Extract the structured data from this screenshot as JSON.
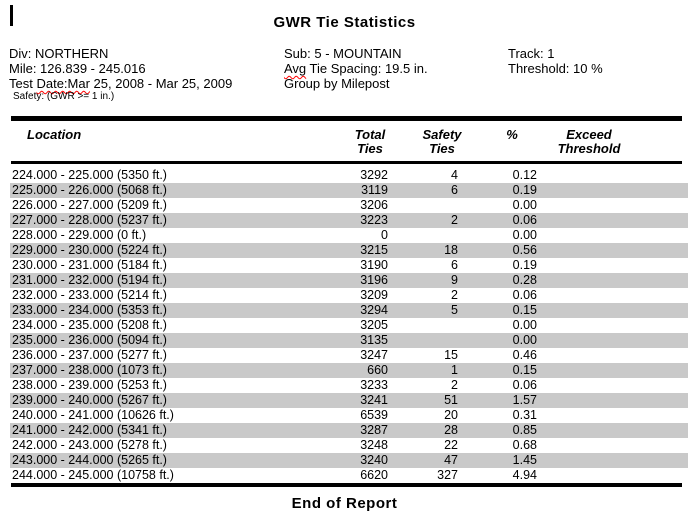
{
  "title": "GWR Tie Statistics",
  "footer": {
    "end_text": "End of Report"
  },
  "report_header": {
    "left": {
      "div_line": "Div: NORTHERN",
      "mile_line": "Mile: 126.839 - 245.016",
      "test_date_prefix": "Test ",
      "test_date_misspelled": "Date:Mar",
      "test_date_rest": " 25, 2008 - Mar 25, 2009",
      "safety_line": "Safety: (GWR >= 1 in.)"
    },
    "middle": {
      "sub_line": "Sub: 5 - MOUNTAIN",
      "avg_misspelled": "Avg",
      "avg_rest": " Tie Spacing: 19.5 in.",
      "group_line": "Group by Milepost"
    },
    "right": {
      "track_line": "Track: 1",
      "threshold_line": "Threshold: 10 %"
    }
  },
  "table": {
    "columns": [
      {
        "line1": "Location",
        "line2": ""
      },
      {
        "line1": "Total",
        "line2": "Ties"
      },
      {
        "line1": "Safety",
        "line2": "Ties"
      },
      {
        "line1": "%",
        "line2": ""
      },
      {
        "line1": "Exceed",
        "line2": "Threshold"
      }
    ],
    "rows": [
      {
        "location": "224.000 - 225.000 (5350 ft.)",
        "total_ties": "3292",
        "safety_ties": "4",
        "percent": "0.12",
        "exceed_threshold": ""
      },
      {
        "location": "225.000 - 226.000 (5068 ft.)",
        "total_ties": "3119",
        "safety_ties": "6",
        "percent": "0.19",
        "exceed_threshold": ""
      },
      {
        "location": "226.000 - 227.000 (5209 ft.)",
        "total_ties": "3206",
        "safety_ties": "",
        "percent": "0.00",
        "exceed_threshold": ""
      },
      {
        "location": "227.000 - 228.000 (5237 ft.)",
        "total_ties": "3223",
        "safety_ties": "2",
        "percent": "0.06",
        "exceed_threshold": ""
      },
      {
        "location": "228.000 - 229.000 (0 ft.)",
        "total_ties": "0",
        "safety_ties": "",
        "percent": "0.00",
        "exceed_threshold": ""
      },
      {
        "location": "229.000 - 230.000 (5224 ft.)",
        "total_ties": "3215",
        "safety_ties": "18",
        "percent": "0.56",
        "exceed_threshold": ""
      },
      {
        "location": "230.000 - 231.000 (5184 ft.)",
        "total_ties": "3190",
        "safety_ties": "6",
        "percent": "0.19",
        "exceed_threshold": ""
      },
      {
        "location": "231.000 - 232.000 (5194 ft.)",
        "total_ties": "3196",
        "safety_ties": "9",
        "percent": "0.28",
        "exceed_threshold": ""
      },
      {
        "location": "232.000 - 233.000 (5214 ft.)",
        "total_ties": "3209",
        "safety_ties": "2",
        "percent": "0.06",
        "exceed_threshold": ""
      },
      {
        "location": "233.000 - 234.000 (5353 ft.)",
        "total_ties": "3294",
        "safety_ties": "5",
        "percent": "0.15",
        "exceed_threshold": ""
      },
      {
        "location": "234.000 - 235.000 (5208 ft.)",
        "total_ties": "3205",
        "safety_ties": "",
        "percent": "0.00",
        "exceed_threshold": ""
      },
      {
        "location": "235.000 - 236.000 (5094 ft.)",
        "total_ties": "3135",
        "safety_ties": "",
        "percent": "0.00",
        "exceed_threshold": ""
      },
      {
        "location": "236.000 - 237.000 (5277 ft.)",
        "total_ties": "3247",
        "safety_ties": "15",
        "percent": "0.46",
        "exceed_threshold": ""
      },
      {
        "location": "237.000 - 238.000 (1073 ft.)",
        "total_ties": "660",
        "safety_ties": "1",
        "percent": "0.15",
        "exceed_threshold": ""
      },
      {
        "location": "238.000 - 239.000 (5253 ft.)",
        "total_ties": "3233",
        "safety_ties": "2",
        "percent": "0.06",
        "exceed_threshold": ""
      },
      {
        "location": "239.000 - 240.000 (5267 ft.)",
        "total_ties": "3241",
        "safety_ties": "51",
        "percent": "1.57",
        "exceed_threshold": ""
      },
      {
        "location": "240.000 - 241.000 (10626 ft.)",
        "total_ties": "6539",
        "safety_ties": "20",
        "percent": "0.31",
        "exceed_threshold": ""
      },
      {
        "location": "241.000 - 242.000 (5341 ft.)",
        "total_ties": "3287",
        "safety_ties": "28",
        "percent": "0.85",
        "exceed_threshold": ""
      },
      {
        "location": "242.000 - 243.000 (5278 ft.)",
        "total_ties": "3248",
        "safety_ties": "22",
        "percent": "0.68",
        "exceed_threshold": ""
      },
      {
        "location": "243.000 - 244.000 (5265 ft.)",
        "total_ties": "3240",
        "safety_ties": "47",
        "percent": "1.45",
        "exceed_threshold": ""
      },
      {
        "location": "244.000 - 245.000 (10758 ft.)",
        "total_ties": "6620",
        "safety_ties": "327",
        "percent": "4.94",
        "exceed_threshold": ""
      }
    ]
  },
  "colors": {
    "row_stripe": "#c9c9c9",
    "rule": "#000000",
    "spellcheck_squiggle": "#ff0000"
  }
}
